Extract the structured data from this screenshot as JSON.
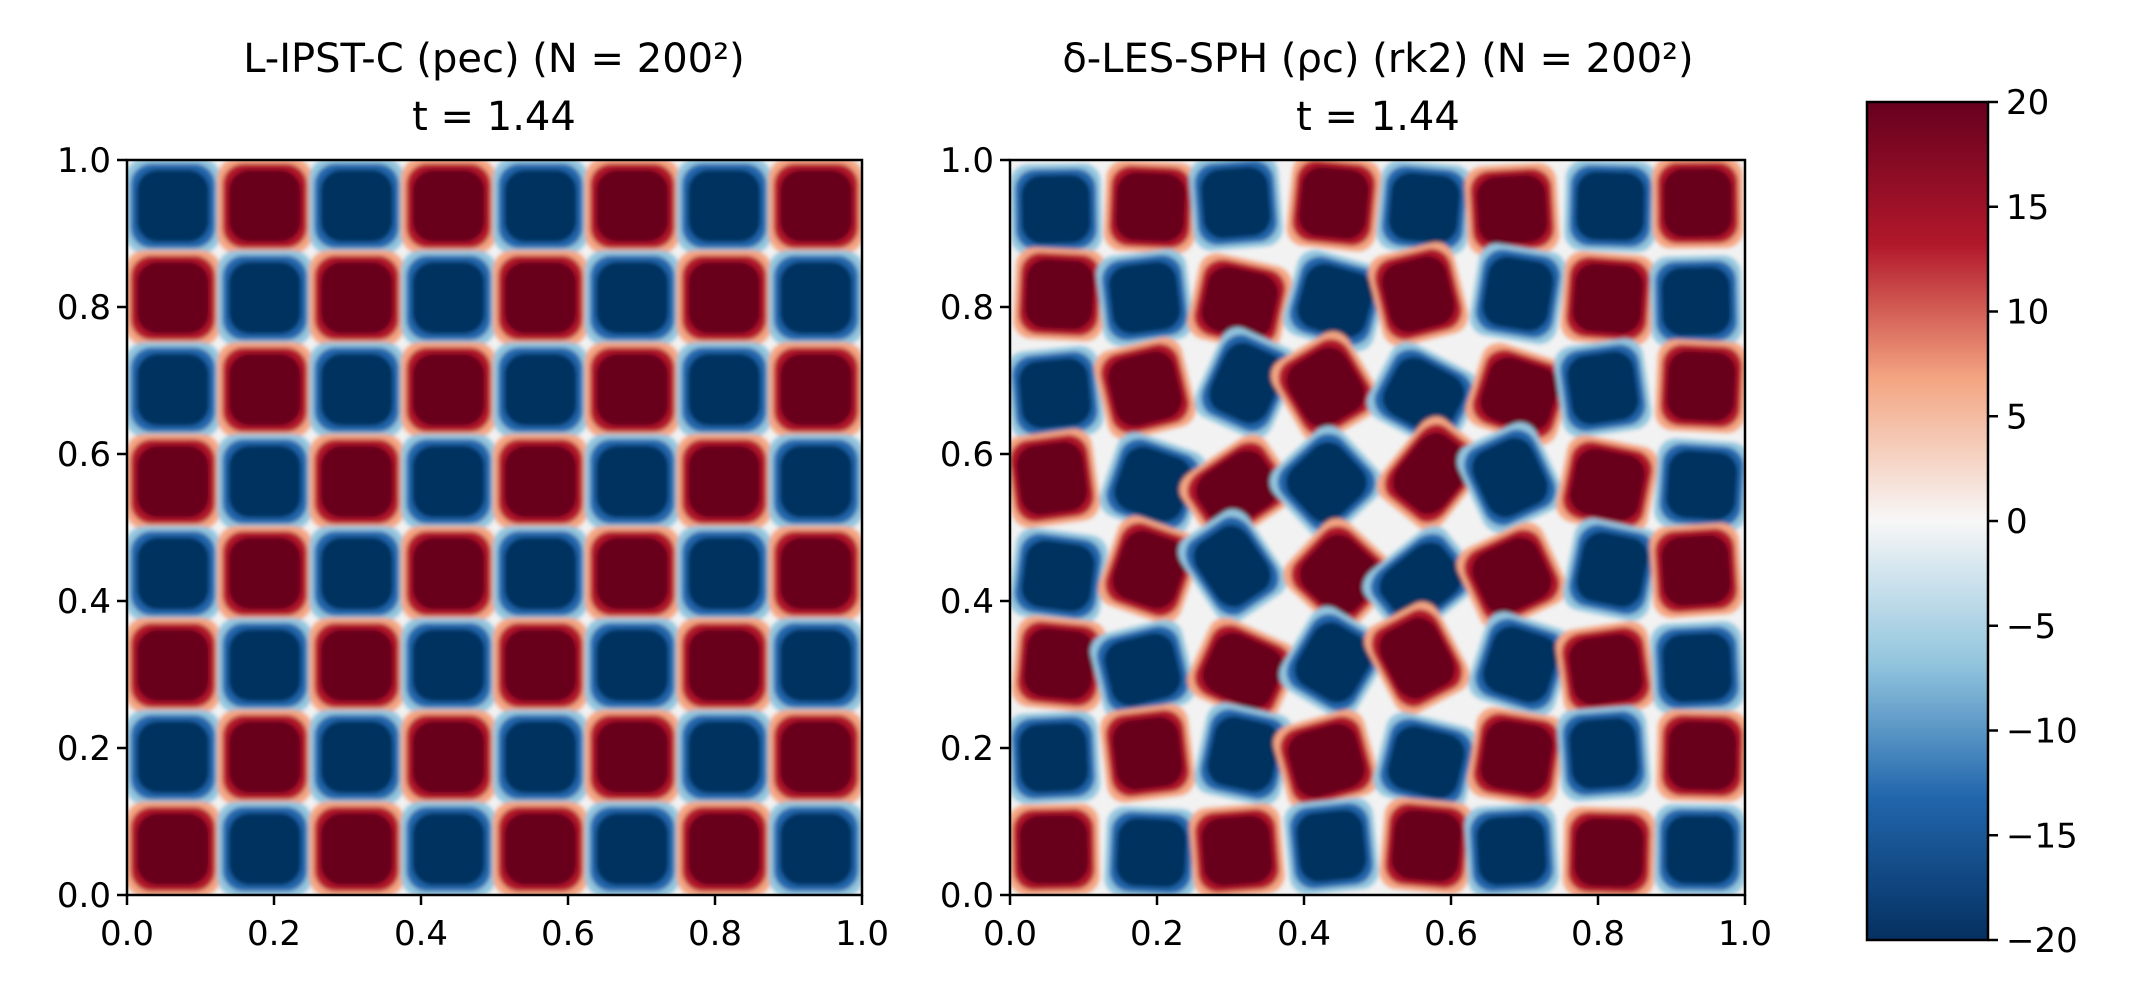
{
  "chart_data": [
    {
      "type": "heatmap",
      "title_line1": "L-IPST-C (pec) (N = 200²)",
      "title_line2": "t = 1.44",
      "xlim": [
        0.0,
        1.0
      ],
      "ylim": [
        0.0,
        1.0
      ],
      "xticks": [
        "0.0",
        "0.2",
        "0.4",
        "0.6",
        "0.8",
        "1.0"
      ],
      "yticks": [
        "0.0",
        "0.2",
        "0.4",
        "0.6",
        "0.8",
        "1.0"
      ],
      "grid": false,
      "field": "vortex checkerboard, 8 x 8 cells, values saturated near ±20",
      "cells_top_row_first": [
        [
          -1,
          1,
          -1,
          1,
          -1,
          1,
          -1,
          1
        ],
        [
          1,
          -1,
          1,
          -1,
          1,
          -1,
          1,
          -1
        ],
        [
          -1,
          1,
          -1,
          1,
          -1,
          1,
          -1,
          1
        ],
        [
          1,
          -1,
          1,
          -1,
          1,
          -1,
          1,
          -1
        ],
        [
          -1,
          1,
          -1,
          1,
          -1,
          1,
          -1,
          1
        ],
        [
          1,
          -1,
          1,
          -1,
          1,
          -1,
          1,
          -1
        ],
        [
          -1,
          1,
          -1,
          1,
          -1,
          1,
          -1,
          1
        ],
        [
          1,
          -1,
          1,
          -1,
          1,
          -1,
          1,
          -1
        ]
      ]
    },
    {
      "type": "heatmap",
      "title_line1": "δ-LES-SPH (ρc) (rk2) (N = 200²)",
      "title_line2": "t = 1.44",
      "xlim": [
        0.0,
        1.0
      ],
      "ylim": [
        0.0,
        1.0
      ],
      "xticks": [
        "0.0",
        "0.2",
        "0.4",
        "0.6",
        "0.8",
        "1.0"
      ],
      "yticks": [
        "0.0",
        "0.2",
        "0.4",
        "0.6",
        "0.8",
        "1.0"
      ],
      "grid": false,
      "field": "distorted vortex checkerboard, 8 x 8 cells, values saturated near ±20",
      "cells_top_row_first": [
        [
          -1,
          1,
          -1,
          1,
          -1,
          1,
          -1,
          1
        ],
        [
          1,
          -1,
          1,
          -1,
          1,
          -1,
          1,
          -1
        ],
        [
          -1,
          1,
          -1,
          1,
          -1,
          1,
          -1,
          1
        ],
        [
          1,
          -1,
          1,
          -1,
          1,
          -1,
          1,
          -1
        ],
        [
          -1,
          1,
          -1,
          1,
          -1,
          1,
          -1,
          1
        ],
        [
          1,
          -1,
          1,
          -1,
          1,
          -1,
          1,
          -1
        ],
        [
          -1,
          1,
          -1,
          1,
          -1,
          1,
          -1,
          1
        ],
        [
          1,
          -1,
          1,
          -1,
          1,
          -1,
          1,
          -1
        ]
      ]
    }
  ],
  "colorbar": {
    "colormap": "RdBu_r",
    "range": [
      -20,
      20
    ],
    "ticks": [
      20,
      15,
      10,
      5,
      0,
      -5,
      -10,
      -15,
      -20
    ],
    "tick_labels": [
      "20",
      "15",
      "10",
      "5",
      "0",
      "−5",
      "−10",
      "−15",
      "−20"
    ],
    "colors": {
      "max": "#67001f",
      "high": "#b2182b",
      "mid_high": "#f4a582",
      "zero": "#f7f7f7",
      "mid_low": "#92c5de",
      "low": "#2166ac",
      "min": "#053061"
    }
  }
}
